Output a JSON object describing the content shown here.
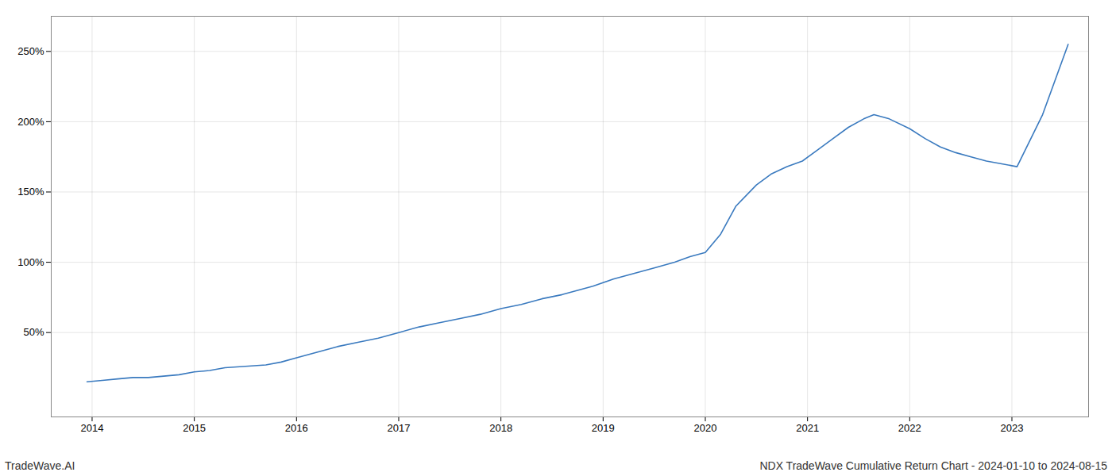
{
  "chart_data": {
    "type": "line",
    "title": "NDX TradeWave Cumulative Return Chart - 2024-01-10 to 2024-08-15",
    "annotations": [
      "TradeWave.AI"
    ],
    "x": [
      2013.95,
      2014.1,
      2014.25,
      2014.4,
      2014.55,
      2014.7,
      2014.85,
      2015.0,
      2015.15,
      2015.3,
      2015.5,
      2015.7,
      2015.85,
      2016.0,
      2016.2,
      2016.4,
      2016.6,
      2016.8,
      2017.0,
      2017.2,
      2017.4,
      2017.6,
      2017.8,
      2018.0,
      2018.2,
      2018.4,
      2018.6,
      2018.75,
      2018.9,
      2019.1,
      2019.3,
      2019.5,
      2019.7,
      2019.85,
      2020.0,
      2020.15,
      2020.3,
      2020.5,
      2020.65,
      2020.8,
      2020.95,
      2021.1,
      2021.25,
      2021.4,
      2021.55,
      2021.65,
      2021.8,
      2022.0,
      2022.15,
      2022.3,
      2022.45,
      2022.6,
      2022.75,
      2022.9,
      2023.05,
      2023.3,
      2023.55
    ],
    "values": [
      15,
      16,
      17,
      18,
      18,
      19,
      20,
      22,
      23,
      25,
      26,
      27,
      29,
      32,
      36,
      40,
      43,
      46,
      50,
      54,
      57,
      60,
      63,
      67,
      70,
      74,
      77,
      80,
      83,
      88,
      92,
      96,
      100,
      104,
      107,
      120,
      140,
      155,
      163,
      168,
      172,
      180,
      188,
      196,
      202,
      205,
      202,
      195,
      188,
      182,
      178,
      175,
      172,
      170,
      168,
      205,
      255
    ],
    "color": "#3a7abf",
    "xlim": [
      2013.6,
      2023.75
    ],
    "xticks": [
      2014,
      2015,
      2016,
      2017,
      2018,
      2019,
      2020,
      2021,
      2022,
      2023
    ],
    "ylim": [
      -10,
      275
    ],
    "yticks": [
      {
        "value": 50,
        "label": "50%"
      },
      {
        "value": 100,
        "label": "100%"
      },
      {
        "value": 150,
        "label": "150%"
      },
      {
        "value": 200,
        "label": "200%"
      },
      {
        "value": 250,
        "label": "250%"
      }
    ],
    "grid": true
  }
}
